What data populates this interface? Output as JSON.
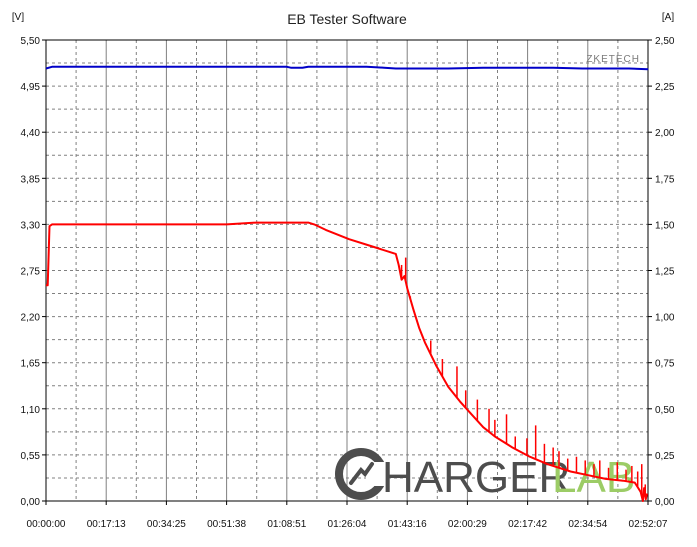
{
  "chart_data": {
    "type": "line",
    "title": "EB Tester Software",
    "left_unit": "[V]",
    "right_unit": "[A]",
    "watermark_brand": "ZKETECH",
    "logo": {
      "main": "HARGER",
      "accent": "LAB",
      "accent_color": "#9ccc66"
    },
    "x_ticks": [
      "00:00:00",
      "00:17:13",
      "00:34:25",
      "00:51:38",
      "01:08:51",
      "01:26:04",
      "01:43:16",
      "02:00:29",
      "02:17:42",
      "02:34:54",
      "02:52:07"
    ],
    "y_left_ticks": [
      "0,00",
      "0,55",
      "1,10",
      "1,65",
      "2,20",
      "2,75",
      "3,30",
      "3,85",
      "4,40",
      "4,95",
      "5,50"
    ],
    "y_right_ticks": [
      "0,00",
      "0,25",
      "0,50",
      "0,75",
      "1,00",
      "1,25",
      "1,50",
      "1,75",
      "2,00",
      "2,25",
      "2,50"
    ],
    "x_range_seconds": [
      0,
      10327
    ],
    "y_left_range": [
      0,
      5.5
    ],
    "y_right_range": [
      0,
      2.5
    ],
    "grid": true,
    "colors": {
      "voltage": "#0000c8",
      "current": "#ff0000",
      "grid": "#808080",
      "axis": "#000000"
    },
    "series": [
      {
        "key": "voltage",
        "axis": "left",
        "points": [
          [
            0,
            5.16
          ],
          [
            103,
            5.18
          ],
          [
            1033,
            5.18
          ],
          [
            2066,
            5.18
          ],
          [
            3100,
            5.18
          ],
          [
            4132,
            5.18
          ],
          [
            4200,
            5.17
          ],
          [
            4400,
            5.17
          ],
          [
            4500,
            5.18
          ],
          [
            5000,
            5.18
          ],
          [
            5500,
            5.18
          ],
          [
            5800,
            5.17
          ],
          [
            6000,
            5.16
          ],
          [
            6300,
            5.16
          ],
          [
            6900,
            5.16
          ],
          [
            7500,
            5.17
          ],
          [
            8300,
            5.17
          ],
          [
            8700,
            5.17
          ],
          [
            9200,
            5.16
          ],
          [
            9600,
            5.16
          ],
          [
            10000,
            5.16
          ],
          [
            10330,
            5.15
          ]
        ]
      },
      {
        "key": "current",
        "axis": "right",
        "points": [
          [
            0,
            1.17
          ],
          [
            30,
            1.17
          ],
          [
            60,
            1.49
          ],
          [
            103,
            1.5
          ],
          [
            1033,
            1.5
          ],
          [
            2066,
            1.5
          ],
          [
            3100,
            1.5
          ],
          [
            3600,
            1.51
          ],
          [
            4300,
            1.51
          ],
          [
            4500,
            1.51
          ],
          [
            4600,
            1.5
          ],
          [
            4800,
            1.47
          ],
          [
            5200,
            1.42
          ],
          [
            5600,
            1.38
          ],
          [
            5900,
            1.35
          ],
          [
            6000,
            1.34
          ],
          [
            6050,
            1.28
          ],
          [
            6100,
            1.2
          ],
          [
            6150,
            1.22
          ],
          [
            6200,
            1.15
          ],
          [
            6300,
            1.04
          ],
          [
            6400,
            0.94
          ],
          [
            6500,
            0.86
          ],
          [
            6700,
            0.73
          ],
          [
            6900,
            0.62
          ],
          [
            7100,
            0.54
          ],
          [
            7300,
            0.47
          ],
          [
            7500,
            0.4
          ],
          [
            7700,
            0.35
          ],
          [
            8000,
            0.29
          ],
          [
            8300,
            0.24
          ],
          [
            8600,
            0.2
          ],
          [
            9000,
            0.16
          ],
          [
            9300,
            0.14
          ],
          [
            9600,
            0.12
          ],
          [
            9900,
            0.11
          ],
          [
            10100,
            0.1
          ],
          [
            10200,
            0.05
          ],
          [
            10240,
            0.0
          ],
          [
            10260,
            0.07
          ],
          [
            10290,
            0.01
          ],
          [
            10310,
            0.04
          ]
        ]
      }
    ],
    "current_spikes": [
      [
        6100,
        1.28
      ],
      [
        6170,
        1.32
      ],
      [
        6250,
        1.11
      ],
      [
        6600,
        0.87
      ],
      [
        6800,
        0.77
      ],
      [
        7050,
        0.73
      ],
      [
        7200,
        0.6
      ],
      [
        7400,
        0.55
      ],
      [
        7600,
        0.5
      ],
      [
        7700,
        0.44
      ],
      [
        7900,
        0.47
      ],
      [
        8050,
        0.35
      ],
      [
        8250,
        0.34
      ],
      [
        8400,
        0.41
      ],
      [
        8550,
        0.31
      ],
      [
        8700,
        0.29
      ],
      [
        8800,
        0.27
      ],
      [
        8950,
        0.23
      ],
      [
        9100,
        0.24
      ],
      [
        9250,
        0.22
      ],
      [
        9400,
        0.2
      ],
      [
        9500,
        0.22
      ],
      [
        9650,
        0.18
      ],
      [
        9800,
        0.21
      ],
      [
        9950,
        0.17
      ],
      [
        10050,
        0.19
      ],
      [
        10150,
        0.16
      ],
      [
        10220,
        0.2
      ],
      [
        10280,
        0.09
      ]
    ]
  }
}
